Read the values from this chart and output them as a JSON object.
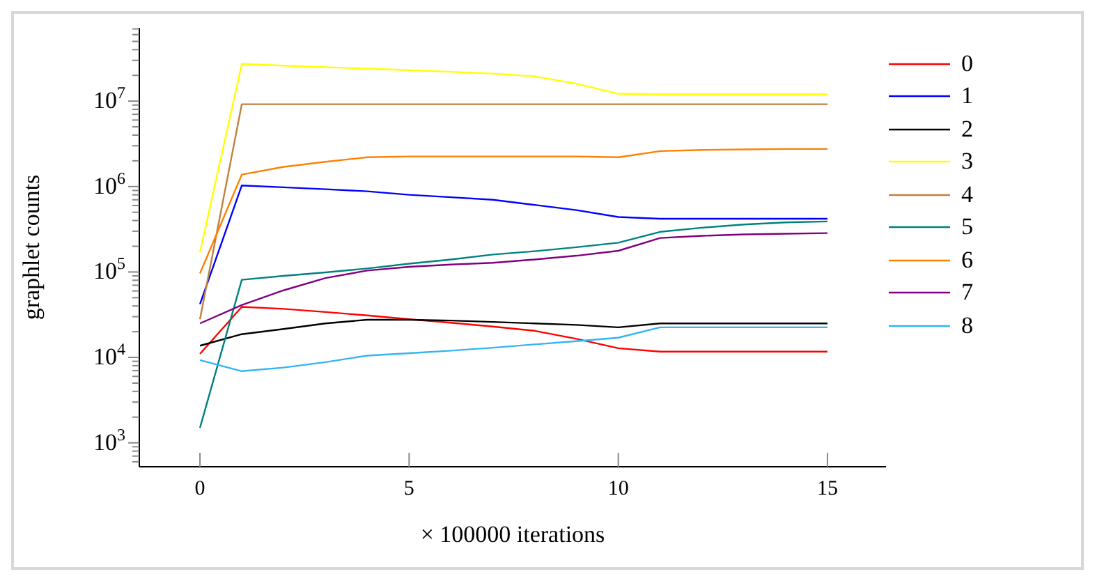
{
  "chart_data": {
    "type": "line",
    "xlabel": "× 100000 iterations",
    "ylabel": "graphlet counts",
    "log": "y",
    "grid": false,
    "legend": "right",
    "marker": "none",
    "line_style": "solid",
    "x": [
      0,
      1,
      2,
      3,
      4,
      5,
      6,
      7,
      8,
      9,
      10,
      11,
      12,
      13,
      14,
      15
    ],
    "xlim": [
      -1.45,
      16.4
    ],
    "xticks": [
      0,
      5,
      10,
      15
    ],
    "ylim": [
      525,
      72000000
    ],
    "yticks": [
      {
        "value": 600,
        "label": null
      },
      {
        "value": 700,
        "label": null
      },
      {
        "value": 800,
        "label": null
      },
      {
        "value": 900,
        "label": null
      },
      {
        "value": 1000,
        "label": "10$^{3}$"
      },
      {
        "value": 2000,
        "label": null
      },
      {
        "value": 3000,
        "label": null
      },
      {
        "value": 4000,
        "label": null
      },
      {
        "value": 5000,
        "label": null
      },
      {
        "value": 6000,
        "label": null
      },
      {
        "value": 7000,
        "label": null
      },
      {
        "value": 8000,
        "label": null
      },
      {
        "value": 9000,
        "label": null
      },
      {
        "value": 10000,
        "label": "10$^{4}$"
      },
      {
        "value": 20000,
        "label": null
      },
      {
        "value": 30000,
        "label": null
      },
      {
        "value": 40000,
        "label": null
      },
      {
        "value": 50000,
        "label": null
      },
      {
        "value": 60000,
        "label": null
      },
      {
        "value": 70000,
        "label": null
      },
      {
        "value": 80000,
        "label": null
      },
      {
        "value": 90000,
        "label": null
      },
      {
        "value": 100000,
        "label": "10$^{5}$"
      },
      {
        "value": 200000,
        "label": null
      },
      {
        "value": 300000,
        "label": null
      },
      {
        "value": 400000,
        "label": null
      },
      {
        "value": 500000,
        "label": null
      },
      {
        "value": 600000,
        "label": null
      },
      {
        "value": 700000,
        "label": null
      },
      {
        "value": 800000,
        "label": null
      },
      {
        "value": 900000,
        "label": null
      },
      {
        "value": 1000000,
        "label": "10$^{6}$"
      },
      {
        "value": 2000000,
        "label": null
      },
      {
        "value": 3000000,
        "label": null
      },
      {
        "value": 4000000,
        "label": null
      },
      {
        "value": 5000000,
        "label": null
      },
      {
        "value": 6000000,
        "label": null
      },
      {
        "value": 7000000,
        "label": null
      },
      {
        "value": 8000000,
        "label": null
      },
      {
        "value": 9000000,
        "label": null
      },
      {
        "value": 10000000,
        "label": "10$^{7}$"
      },
      {
        "value": 20000000,
        "label": null
      },
      {
        "value": 30000000,
        "label": null
      },
      {
        "value": 40000000,
        "label": null
      },
      {
        "value": 50000000,
        "label": null
      },
      {
        "value": 60000000,
        "label": null
      },
      {
        "value": 70000000,
        "label": null
      }
    ],
    "series": [
      {
        "name": "0",
        "color": "#ff0000",
        "values": [
          11000,
          39000,
          37000,
          34000,
          31000,
          28000,
          25500,
          23000,
          20500,
          16500,
          12800,
          11700,
          11700,
          11700,
          11700,
          11700
        ]
      },
      {
        "name": "1",
        "color": "#0000ff",
        "values": [
          42000,
          1030000,
          980000,
          930000,
          880000,
          800000,
          750000,
          700000,
          610000,
          530000,
          440000,
          420000,
          420000,
          420000,
          420000,
          420000
        ]
      },
      {
        "name": "2",
        "color": "#000000",
        "values": [
          13700,
          18700,
          21500,
          25000,
          27600,
          27600,
          27000,
          26000,
          25000,
          24000,
          22500,
          25000,
          25000,
          25000,
          25000,
          25000
        ]
      },
      {
        "name": "3",
        "color": "#ffff00",
        "values": [
          170000,
          27300000,
          26000000,
          25000000,
          24000000,
          23000000,
          22000000,
          21000000,
          19500000,
          16000000,
          12200000,
          12000000,
          12000000,
          12000000,
          12000000,
          12000000
        ]
      },
      {
        "name": "4",
        "color": "#bf8040",
        "values": [
          28000,
          9200000,
          9200000,
          9200000,
          9200000,
          9200000,
          9200000,
          9200000,
          9200000,
          9200000,
          9200000,
          9200000,
          9200000,
          9200000,
          9200000,
          9200000
        ]
      },
      {
        "name": "5",
        "color": "#008080",
        "values": [
          1500,
          81000,
          90000,
          99000,
          110000,
          125000,
          140000,
          160000,
          175000,
          195000,
          220000,
          295000,
          330000,
          360000,
          380000,
          390000
        ]
      },
      {
        "name": "6",
        "color": "#ff8000",
        "values": [
          96000,
          1380000,
          1700000,
          1950000,
          2200000,
          2250000,
          2250000,
          2250000,
          2250000,
          2250000,
          2200000,
          2600000,
          2680000,
          2720000,
          2750000,
          2750000
        ]
      },
      {
        "name": "7",
        "color": "#800080",
        "values": [
          25000,
          41000,
          61000,
          85000,
          104000,
          115000,
          122000,
          128000,
          140000,
          155000,
          177000,
          250000,
          265000,
          275000,
          280000,
          285000
        ]
      },
      {
        "name": "8",
        "color": "#33b5f0",
        "values": [
          9300,
          6900,
          7600,
          8800,
          10500,
          11200,
          12000,
          13000,
          14200,
          15500,
          17000,
          22500,
          22500,
          22500,
          22500,
          22500
        ]
      }
    ]
  }
}
